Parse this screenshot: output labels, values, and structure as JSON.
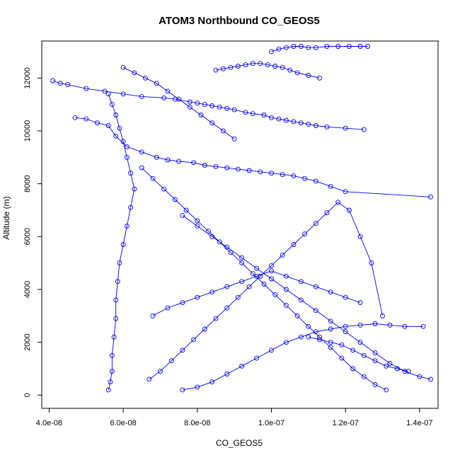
{
  "chart_data": {
    "type": "line",
    "title": "ATOM3 Northbound CO_GEOS5",
    "xlabel": "CO_GEOS5",
    "ylabel": "Altitude (m)",
    "xlim": [
      3.8e-08,
      1.45e-07
    ],
    "ylim": [
      -500,
      13400
    ],
    "xticks": [
      4e-08,
      6e-08,
      8e-08,
      1e-07,
      1.2e-07,
      1.4e-07
    ],
    "xtick_labels": [
      "4.0e-08",
      "6.0e-08",
      "8.0e-08",
      "1.0e-07",
      "1.2e-07",
      "1.4e-07"
    ],
    "yticks": [
      0,
      2000,
      4000,
      6000,
      8000,
      10000,
      12000
    ],
    "ytick_labels": [
      "0",
      "2000",
      "4000",
      "6000",
      "8000",
      "10000",
      "12000"
    ],
    "grid": false,
    "series_color": "#0000ff",
    "marker": "open-circle",
    "series": [
      {
        "x": [
          4.1e-08,
          4.3e-08,
          4.5e-08,
          5e-08,
          5.5e-08,
          6e-08,
          6.5e-08,
          7.1e-08,
          7.4e-08,
          7.8e-08,
          8e-08,
          8.2e-08,
          8.4e-08,
          8.6e-08,
          8.8e-08,
          9e-08,
          9.3e-08,
          9.5e-08,
          9.8e-08,
          1e-07,
          1.02e-07,
          1.04e-07,
          1.06e-07,
          1.08e-07,
          1.1e-07,
          1.12e-07,
          1.15e-07,
          1.2e-07,
          1.25e-07
        ],
        "y": [
          11900,
          11800,
          11750,
          11600,
          11500,
          11400,
          11300,
          11250,
          11200,
          11100,
          11050,
          11000,
          10950,
          10900,
          10850,
          10800,
          10700,
          10650,
          10600,
          10500,
          10450,
          10400,
          10350,
          10300,
          10250,
          10200,
          10150,
          10100,
          10050
        ]
      },
      {
        "x": [
          4.7e-08,
          5e-08,
          5.3e-08,
          5.6e-08,
          5.8e-08,
          6.1e-08,
          6.5e-08,
          6.9e-08,
          7.2e-08,
          7.5e-08,
          7.9e-08,
          8.2e-08,
          8.5e-08,
          8.8e-08,
          9.1e-08,
          9.4e-08,
          9.7e-08,
          1e-07,
          1.03e-07,
          1.06e-07,
          1.09e-07,
          1.12e-07,
          1.16e-07,
          1.2e-07,
          1.43e-07
        ],
        "y": [
          10500,
          10450,
          10300,
          10200,
          9800,
          9400,
          9200,
          9000,
          8900,
          8850,
          8800,
          8700,
          8650,
          8600,
          8550,
          8500,
          8450,
          8400,
          8350,
          8300,
          8200,
          8100,
          7900,
          7700,
          7500
        ]
      },
      {
        "x": [
          5.6e-08,
          5.65e-08,
          5.7e-08,
          5.7e-08,
          5.75e-08,
          5.8e-08,
          5.8e-08,
          5.85e-08,
          5.9e-08,
          6e-08,
          6.1e-08,
          6.2e-08,
          6.3e-08,
          6.2e-08,
          6.1e-08,
          6e-08,
          5.9e-08,
          5.8e-08,
          5.7e-08,
          5.6e-08
        ],
        "y": [
          200,
          500,
          900,
          1500,
          2200,
          2900,
          3600,
          4300,
          5000,
          5700,
          6400,
          7100,
          7800,
          8400,
          9000,
          9600,
          10100,
          10600,
          11000,
          11400
        ]
      },
      {
        "x": [
          6.7e-08,
          7e-08,
          7.3e-08,
          7.6e-08,
          7.9e-08,
          8.2e-08,
          8.5e-08,
          8.8e-08,
          9.1e-08,
          9.4e-08,
          9.7e-08,
          1e-07,
          1.03e-07,
          1.06e-07,
          1.09e-07,
          1.12e-07,
          1.15e-07,
          1.18e-07,
          1.21e-07,
          1.24e-07,
          1.27e-07,
          1.3e-07
        ],
        "y": [
          600,
          900,
          1300,
          1700,
          2100,
          2500,
          2900,
          3300,
          3700,
          4100,
          4500,
          4900,
          5300,
          5700,
          6100,
          6500,
          6900,
          7300,
          7000,
          6000,
          5000,
          3000
        ]
      },
      {
        "x": [
          1.31e-07,
          1.28e-07,
          1.25e-07,
          1.22e-07,
          1.19e-07,
          1.16e-07,
          1.13e-07,
          1.1e-07,
          1.07e-07,
          1.04e-07,
          1.01e-07,
          9.8e-08,
          9.5e-08,
          9.2e-08,
          8.9e-08,
          8.6e-08,
          8.3e-08,
          8e-08,
          7.7e-08,
          7.4e-08,
          7.1e-08,
          6.8e-08,
          6.5e-08
        ],
        "y": [
          200,
          400,
          700,
          1000,
          1400,
          1800,
          2200,
          2600,
          3000,
          3400,
          3800,
          4200,
          4600,
          5000,
          5400,
          5800,
          6200,
          6600,
          7000,
          7400,
          7800,
          8200,
          8600
        ]
      },
      {
        "x": [
          7.6e-08,
          8e-08,
          8.4e-08,
          8.8e-08,
          9.2e-08,
          9.6e-08,
          1e-07,
          1.04e-07,
          1.08e-07,
          1.12e-07,
          1.16e-07,
          1.2e-07,
          1.24e-07,
          1.28e-07,
          1.32e-07,
          1.36e-07,
          1.41e-07
        ],
        "y": [
          200,
          300,
          500,
          800,
          1100,
          1400,
          1700,
          2000,
          2200,
          2400,
          2500,
          2600,
          2650,
          2700,
          2650,
          2600,
          2600
        ]
      },
      {
        "x": [
          1e-07,
          1.02e-07,
          1.04e-07,
          1.06e-07,
          1.08e-07,
          1.1e-07,
          1.12e-07,
          1.15e-07,
          1.18e-07,
          1.21e-07,
          1.24e-07,
          1.26e-07
        ],
        "y": [
          13000,
          13100,
          13150,
          13200,
          13200,
          13150,
          13150,
          13200,
          13200,
          13200,
          13200,
          13200
        ]
      },
      {
        "x": [
          8.5e-08,
          8.7e-08,
          8.9e-08,
          9.1e-08,
          9.3e-08,
          9.5e-08,
          9.7e-08,
          9.9e-08,
          1.01e-07,
          1.03e-07,
          1.05e-07,
          1.07e-07,
          1.1e-07,
          1.13e-07
        ],
        "y": [
          12300,
          12350,
          12400,
          12450,
          12500,
          12550,
          12550,
          12500,
          12450,
          12400,
          12300,
          12200,
          12100,
          12000
        ]
      },
      {
        "x": [
          1.43e-07,
          1.4e-07,
          1.36e-07,
          1.32e-07,
          1.28e-07,
          1.24e-07,
          1.2e-07,
          1.16e-07,
          1.12e-07,
          1.08e-07,
          1.04e-07,
          1e-07,
          9.6e-08,
          9.2e-08,
          8.8e-08,
          8.4e-08,
          8e-08,
          7.6e-08
        ],
        "y": [
          600,
          700,
          900,
          1200,
          1600,
          2000,
          2400,
          2800,
          3200,
          3600,
          4000,
          4400,
          4800,
          5200,
          5600,
          6000,
          6400,
          6800
        ]
      },
      {
        "x": [
          6.8e-08,
          7.2e-08,
          7.6e-08,
          8e-08,
          8.4e-08,
          8.8e-08,
          9.2e-08,
          9.6e-08,
          1e-07,
          1.04e-07,
          1.08e-07,
          1.12e-07,
          1.16e-07,
          1.2e-07,
          1.24e-07
        ],
        "y": [
          3000,
          3300,
          3500,
          3700,
          3900,
          4100,
          4300,
          4500,
          4700,
          4500,
          4300,
          4100,
          3900,
          3700,
          3500
        ]
      },
      {
        "x": [
          6e-08,
          6.3e-08,
          6.6e-08,
          6.9e-08,
          7.2e-08,
          7.5e-08,
          7.8e-08,
          8.1e-08,
          8.4e-08,
          8.7e-08,
          9e-08
        ],
        "y": [
          12400,
          12200,
          12000,
          11800,
          11500,
          11200,
          10900,
          10600,
          10300,
          10000,
          9700
        ]
      },
      {
        "x": [
          1.1e-07,
          1.13e-07,
          1.16e-07,
          1.19e-07,
          1.22e-07,
          1.25e-07,
          1.28e-07,
          1.31e-07,
          1.34e-07,
          1.37e-07
        ],
        "y": [
          2200,
          2100,
          2000,
          1900,
          1700,
          1500,
          1300,
          1100,
          1000,
          900
        ]
      }
    ]
  }
}
